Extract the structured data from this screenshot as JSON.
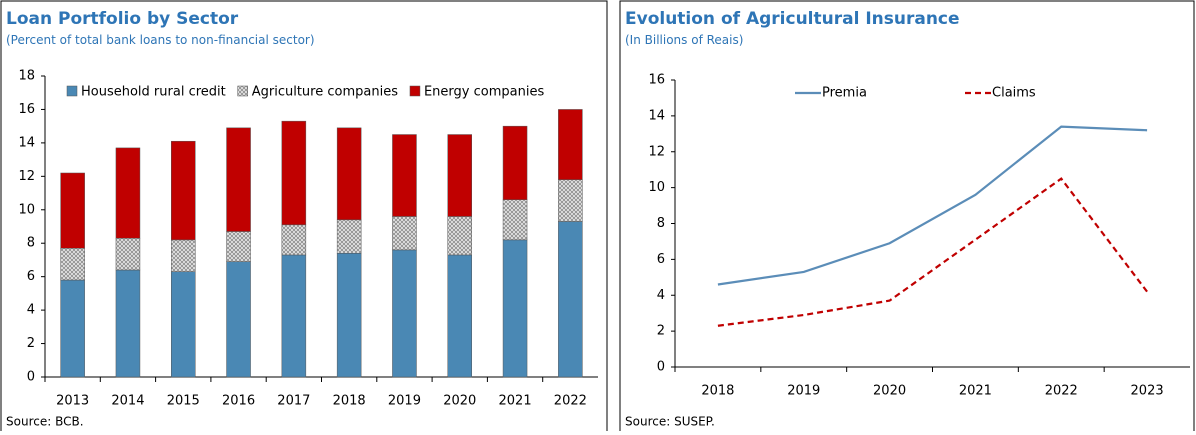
{
  "chart_data": [
    {
      "type": "stacked_bar",
      "title": "Loan Portfolio by Sector",
      "subtitle": "(Percent of total bank loans to non-financial sector)",
      "source": "Source: BCB.",
      "categories": [
        "2013",
        "2014",
        "2015",
        "2016",
        "2017",
        "2018",
        "2019",
        "2020",
        "2021",
        "2022"
      ],
      "series": [
        {
          "name": "Household rural credit",
          "color": "#4a88b4",
          "values": [
            5.8,
            6.4,
            6.3,
            6.9,
            7.3,
            7.4,
            7.6,
            7.3,
            8.2,
            9.3
          ]
        },
        {
          "name": "Agriculture companies",
          "color": "#bfbfbf",
          "values": [
            1.9,
            1.9,
            1.9,
            1.8,
            1.8,
            2.0,
            2.0,
            2.3,
            2.4,
            2.5
          ]
        },
        {
          "name": "Energy companies",
          "color": "#c00000",
          "values": [
            4.5,
            5.4,
            5.9,
            6.2,
            6.2,
            5.5,
            4.9,
            4.9,
            4.4,
            4.2
          ]
        }
      ],
      "ylim": [
        0,
        18
      ],
      "yticks": [
        0,
        2,
        4,
        6,
        8,
        10,
        12,
        14,
        16,
        18
      ],
      "legend": "top"
    },
    {
      "type": "line",
      "title": "Evolution of Agricultural Insurance",
      "subtitle": "(In Billions of Reais)",
      "source": "Source: SUSEP.",
      "categories": [
        "2018",
        "2019",
        "2020",
        "2021",
        "2022",
        "2023"
      ],
      "series": [
        {
          "name": "Premia",
          "color": "#5b8db8",
          "dash": false,
          "values": [
            4.6,
            5.3,
            6.9,
            9.6,
            13.4,
            13.2
          ]
        },
        {
          "name": "Claims",
          "color": "#c00000",
          "dash": true,
          "values": [
            2.3,
            2.9,
            3.7,
            7.1,
            10.5,
            4.2
          ]
        }
      ],
      "ylim": [
        0,
        16
      ],
      "yticks": [
        0,
        2,
        4,
        6,
        8,
        10,
        12,
        14,
        16
      ],
      "legend": "top"
    }
  ]
}
